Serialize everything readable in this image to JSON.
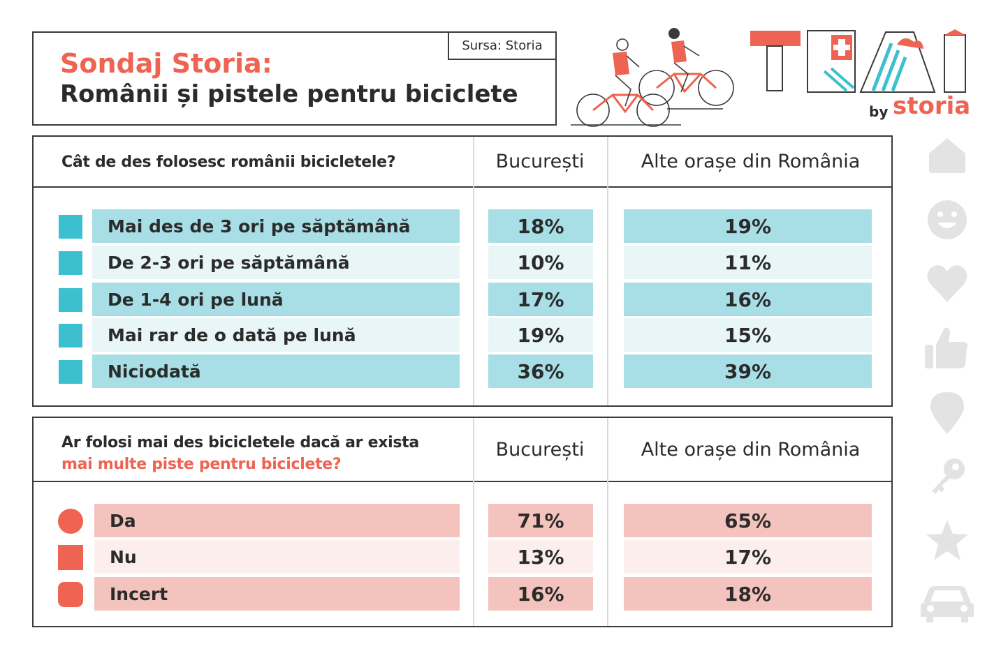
{
  "header": {
    "title_line1": "Sondaj Storia:",
    "title_line2": "Românii și pistele pentru biciclete",
    "source": "Sursa: Storia"
  },
  "brand": {
    "trai": "TRAI",
    "by": "by",
    "storia": "storia"
  },
  "colors": {
    "accent": "#ee6352",
    "teal_dark": "#a8dfe6",
    "teal_light": "#e8f6f8",
    "teal_marker": "#3cbfcf",
    "pink_dark": "#f5c3bd",
    "pink_light": "#fbeeec",
    "icon_grey": "#e3e3e3"
  },
  "chart_data": [
    {
      "type": "table",
      "question": "Cât de des folosesc românii bicicletele?",
      "columns": [
        "București",
        "Alte orașe din România"
      ],
      "rows": [
        {
          "label": "Mai des de 3 ori pe săptămână",
          "values": [
            "18%",
            "19%"
          ]
        },
        {
          "label": "De 2-3 ori pe săptămână",
          "values": [
            "10%",
            "11%"
          ]
        },
        {
          "label": "De 1-4 ori pe lună",
          "values": [
            "17%",
            "16%"
          ]
        },
        {
          "label": "Mai rar de o dată pe lună",
          "values": [
            "19%",
            "15%"
          ]
        },
        {
          "label": "Niciodată",
          "values": [
            "36%",
            "39%"
          ]
        }
      ]
    },
    {
      "type": "table",
      "question_part1": "Ar folosi mai des bicicletele dacă ar exista",
      "question_part2": "mai multe piste pentru biciclete?",
      "columns": [
        "București",
        "Alte orașe din România"
      ],
      "rows": [
        {
          "label": "Da",
          "marker": "circle",
          "values": [
            "71%",
            "65%"
          ]
        },
        {
          "label": "Nu",
          "marker": "square",
          "values": [
            "13%",
            "17%"
          ]
        },
        {
          "label": "Incert",
          "marker": "rounded-square",
          "values": [
            "16%",
            "18%"
          ]
        }
      ]
    }
  ],
  "side_icons": [
    "house-icon",
    "smiley-icon",
    "heart-icon",
    "thumbs-up-icon",
    "location-pin-icon",
    "key-icon",
    "star-icon",
    "car-icon"
  ]
}
